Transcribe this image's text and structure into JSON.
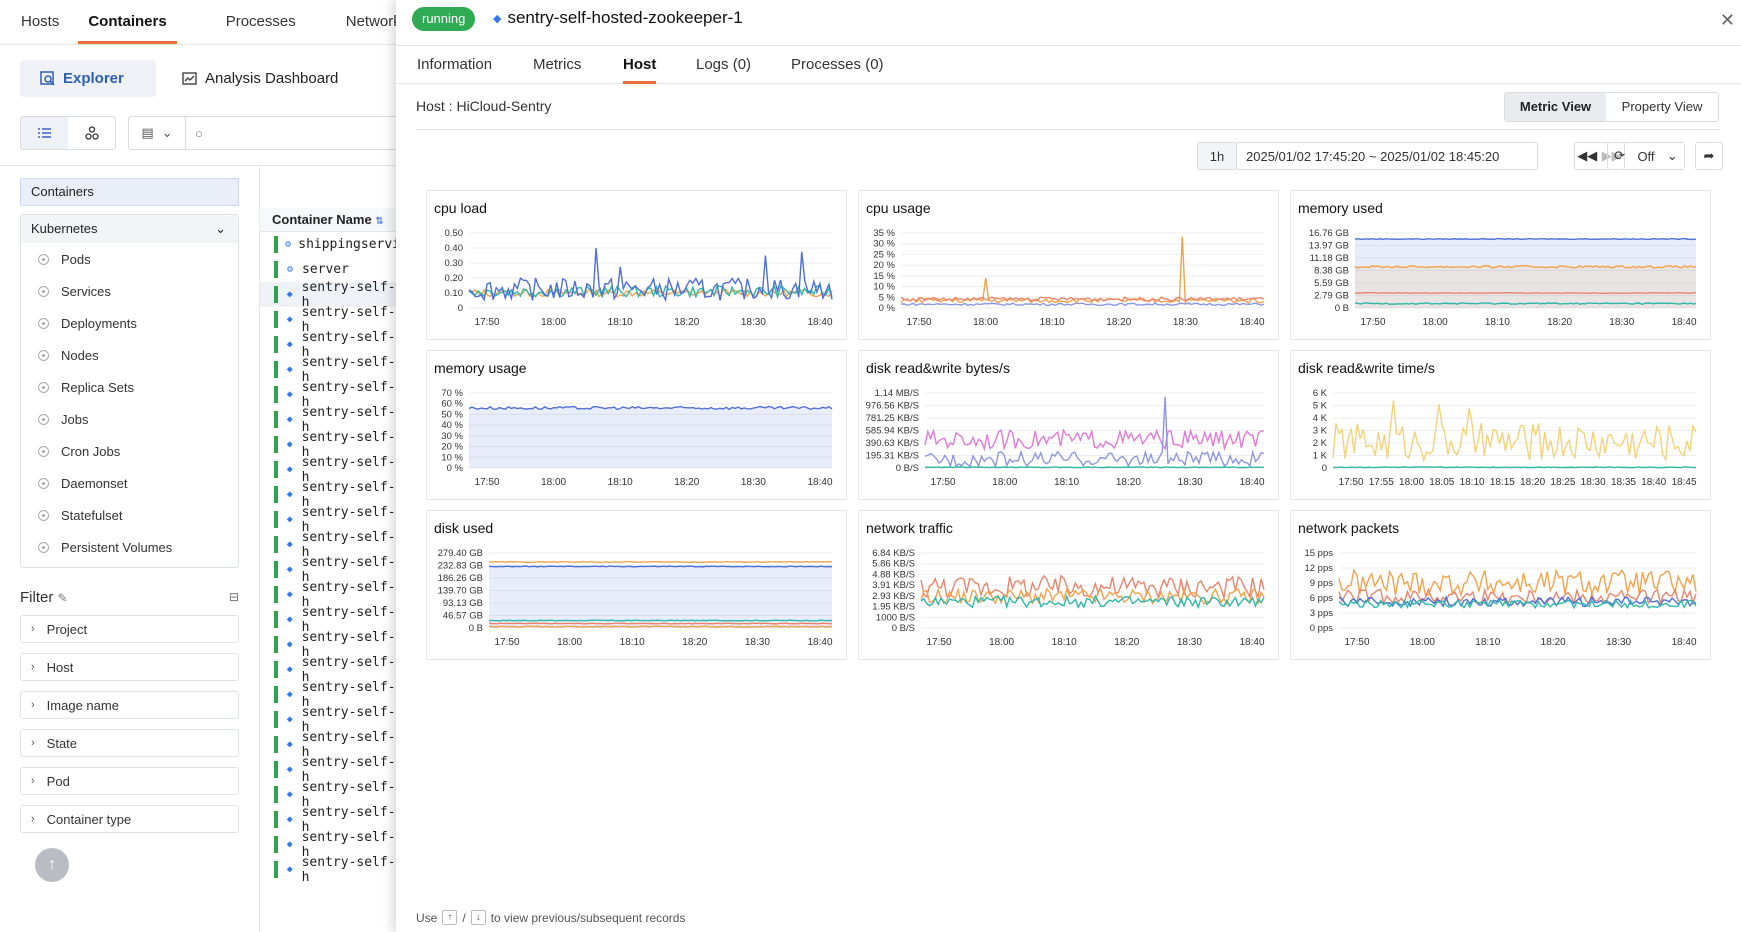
{
  "app": {
    "top_tabs": [
      "Hosts",
      "Containers",
      "Processes",
      "Network"
    ],
    "sub_tabs": {
      "explorer": "Explorer",
      "analysis": "Analysis Dashboard"
    },
    "containers_header": "Containers",
    "kubernetes": {
      "title": "Kubernetes",
      "items": [
        "Pods",
        "Services",
        "Deployments",
        "Nodes",
        "Replica Sets",
        "Jobs",
        "Cron Jobs",
        "Daemonset",
        "Statefulset",
        "Persistent Volumes"
      ]
    },
    "filter": {
      "title": "Filter",
      "items": [
        "Project",
        "Host",
        "Image name",
        "State",
        "Pod",
        "Container type"
      ]
    },
    "list": {
      "header": "Container Name",
      "rows": [
        "shippingservi",
        "server",
        "sentry-self-h",
        "sentry-self-h",
        "sentry-self-h",
        "sentry-self-h",
        "sentry-self-h",
        "sentry-self-h",
        "sentry-self-h",
        "sentry-self-h",
        "sentry-self-h",
        "sentry-self-h",
        "sentry-self-h",
        "sentry-self-h",
        "sentry-self-h",
        "sentry-self-h",
        "sentry-self-h",
        "sentry-self-h",
        "sentry-self-h",
        "sentry-self-h",
        "sentry-self-h",
        "sentry-self-h",
        "sentry-self-h",
        "sentry-self-h",
        "sentry-self-h",
        "sentry-self-h"
      ]
    }
  },
  "drawer": {
    "status": "running",
    "title": "sentry-self-hosted-zookeeper-1",
    "tabs": [
      "Information",
      "Metrics",
      "Host",
      "Logs (0)",
      "Processes (0)"
    ],
    "host_label": "Host : HiCloud-Sentry",
    "views": {
      "metric": "Metric View",
      "property": "Property View"
    },
    "range": "1h",
    "time_range": "2025/01/02 17:45:20 ~ 2025/01/02 18:45:20",
    "refresh": "Off",
    "footer": {
      "use": "Use",
      "slash": "/",
      "rest": "to view previous/subsequent records"
    }
  },
  "colors": {
    "accent": "#e8713a",
    "running": "#2fab53",
    "blue": "#4e6fd6",
    "orange": "#f1a34b",
    "teal": "#2fb7a8",
    "pink": "#e07ad6",
    "purple": "#8d96e0"
  },
  "chart_data": [
    {
      "title": "cpu load",
      "type": "line",
      "xticks": [
        "17:50",
        "18:00",
        "18:10",
        "18:20",
        "18:30",
        "18:40"
      ],
      "yticks": [
        "0.50",
        "0.40",
        "0.30",
        "0.20",
        "0.10",
        "0"
      ]
    },
    {
      "title": "cpu usage",
      "type": "line",
      "xticks": [
        "17:50",
        "18:00",
        "18:10",
        "18:20",
        "18:30",
        "18:40"
      ],
      "yticks": [
        "35 %",
        "30 %",
        "25 %",
        "20 %",
        "15 %",
        "10 %",
        "5 %",
        "0 %"
      ]
    },
    {
      "title": "memory used",
      "type": "area",
      "xticks": [
        "17:50",
        "18:00",
        "18:10",
        "18:20",
        "18:30",
        "18:40"
      ],
      "yticks": [
        "16.76 GB",
        "13.97 GB",
        "11.18 GB",
        "8.38 GB",
        "5.59 GB",
        "2.79 GB",
        "0 B"
      ]
    },
    {
      "title": "memory usage",
      "type": "area",
      "xticks": [
        "17:50",
        "18:00",
        "18:10",
        "18:20",
        "18:30",
        "18:40"
      ],
      "yticks": [
        "70 %",
        "60 %",
        "50 %",
        "40 %",
        "30 %",
        "20 %",
        "10 %",
        "0 %"
      ]
    },
    {
      "title": "disk read&write bytes/s",
      "type": "line",
      "xticks": [
        "17:50",
        "18:00",
        "18:10",
        "18:20",
        "18:30",
        "18:40"
      ],
      "yticks": [
        "1.14 MB/S",
        "976.56 KB/S",
        "781.25 KB/S",
        "585.94 KB/S",
        "390.63 KB/S",
        "195.31 KB/S",
        "0 B/S"
      ]
    },
    {
      "title": "disk read&write time/s",
      "type": "line",
      "xticks": [
        "17:50",
        "17:55",
        "18:00",
        "18:05",
        "18:10",
        "18:15",
        "18:20",
        "18:25",
        "18:30",
        "18:35",
        "18:40",
        "18:45"
      ],
      "yticks": [
        "6 K",
        "5 K",
        "4 K",
        "3 K",
        "2 K",
        "1 K",
        "0"
      ]
    },
    {
      "title": "disk used",
      "type": "area",
      "xticks": [
        "17:50",
        "18:00",
        "18:10",
        "18:20",
        "18:30",
        "18:40"
      ],
      "yticks": [
        "279.40 GB",
        "232.83 GB",
        "186.26 GB",
        "139.70 GB",
        "93.13 GB",
        "46.57 GB",
        "0 B"
      ]
    },
    {
      "title": "network traffic",
      "type": "line",
      "xticks": [
        "17:50",
        "18:00",
        "18:10",
        "18:20",
        "18:30",
        "18:40"
      ],
      "yticks": [
        "6.84 KB/S",
        "5.86 KB/S",
        "4.88 KB/S",
        "3.91 KB/S",
        "2.93 KB/S",
        "1.95 KB/S",
        "1000 B/S",
        "0 B/S"
      ]
    },
    {
      "title": "network packets",
      "type": "line",
      "xticks": [
        "17:50",
        "18:00",
        "18:10",
        "18:20",
        "18:30",
        "18:40"
      ],
      "yticks": [
        "15 pps",
        "12 pps",
        "9 pps",
        "6 pps",
        "3 pps",
        "0 pps"
      ]
    }
  ]
}
